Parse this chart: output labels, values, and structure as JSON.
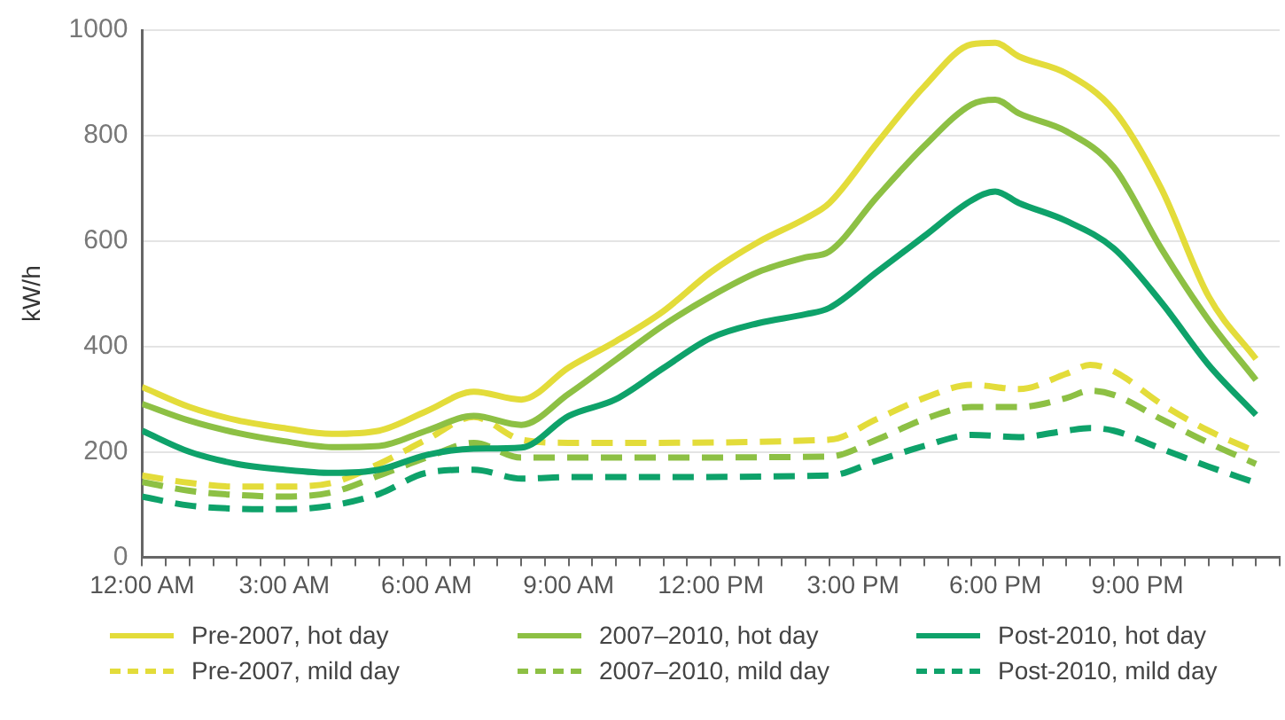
{
  "chart_data": {
    "type": "line",
    "ylabel": "kW/h",
    "xlim": [
      0,
      24
    ],
    "ylim": [
      0,
      1000
    ],
    "yticks": [
      0,
      200,
      400,
      600,
      800,
      1000
    ],
    "xticks": [
      {
        "value": 0,
        "label": "12:00 AM"
      },
      {
        "value": 0.5,
        "label": null
      },
      {
        "value": 1,
        "label": null
      },
      {
        "value": 1.5,
        "label": null
      },
      {
        "value": 2,
        "label": null
      },
      {
        "value": 2.5,
        "label": null
      },
      {
        "value": 3,
        "label": "3:00 AM"
      },
      {
        "value": 3.5,
        "label": null
      },
      {
        "value": 4,
        "label": null
      },
      {
        "value": 4.5,
        "label": null
      },
      {
        "value": 5,
        "label": null
      },
      {
        "value": 5.5,
        "label": null
      },
      {
        "value": 6,
        "label": "6:00 AM"
      },
      {
        "value": 6.5,
        "label": null
      },
      {
        "value": 7,
        "label": null
      },
      {
        "value": 7.5,
        "label": null
      },
      {
        "value": 8,
        "label": null
      },
      {
        "value": 8.5,
        "label": null
      },
      {
        "value": 9,
        "label": "9:00 AM"
      },
      {
        "value": 9.5,
        "label": null
      },
      {
        "value": 10,
        "label": null
      },
      {
        "value": 10.5,
        "label": null
      },
      {
        "value": 11,
        "label": null
      },
      {
        "value": 11.5,
        "label": null
      },
      {
        "value": 12,
        "label": "12:00 PM"
      },
      {
        "value": 12.5,
        "label": null
      },
      {
        "value": 13,
        "label": null
      },
      {
        "value": 13.5,
        "label": null
      },
      {
        "value": 14,
        "label": null
      },
      {
        "value": 14.5,
        "label": null
      },
      {
        "value": 15,
        "label": "3:00 PM"
      },
      {
        "value": 15.5,
        "label": null
      },
      {
        "value": 16,
        "label": null
      },
      {
        "value": 16.5,
        "label": null
      },
      {
        "value": 17,
        "label": null
      },
      {
        "value": 17.5,
        "label": null
      },
      {
        "value": 18,
        "label": "6:00 PM"
      },
      {
        "value": 18.5,
        "label": null
      },
      {
        "value": 19,
        "label": null
      },
      {
        "value": 19.5,
        "label": null
      },
      {
        "value": 20,
        "label": null
      },
      {
        "value": 20.5,
        "label": null
      },
      {
        "value": 21,
        "label": "9:00 PM"
      },
      {
        "value": 21.5,
        "label": null
      },
      {
        "value": 22,
        "label": null
      },
      {
        "value": 22.5,
        "label": null
      },
      {
        "value": 23,
        "label": null
      },
      {
        "value": 23.5,
        "label": null
      },
      {
        "value": 24,
        "label": null
      }
    ],
    "grid": "y",
    "legend": "bottom",
    "marker": "none",
    "series": [
      {
        "name": "Pre-2007, hot day",
        "color": "#e3dc3a",
        "line_style": "solid",
        "x": [
          0,
          1,
          2,
          3,
          4,
          5,
          6,
          7,
          8,
          9,
          10,
          11,
          12,
          13,
          14,
          14.5,
          15.5,
          16.5,
          17.5,
          18,
          18.5,
          19.5,
          20.5,
          21.5,
          22.5,
          23.5
        ],
        "values": [
          323,
          285,
          260,
          245,
          234,
          240,
          277,
          314,
          299,
          360,
          410,
          467,
          541,
          598,
          643,
          672,
          785,
          893,
          973,
          976,
          950,
          918,
          848,
          700,
          495,
          376
        ]
      },
      {
        "name": "2007–2010, hot day",
        "color": "#8dc044",
        "line_style": "solid",
        "x": [
          0,
          1,
          2,
          3,
          4,
          5,
          6,
          7,
          8,
          9,
          10,
          11,
          12,
          13,
          14,
          14.5,
          15.5,
          16.5,
          17.5,
          18,
          18.5,
          19.5,
          20.5,
          21.5,
          22.5,
          23.5
        ],
        "values": [
          291,
          259,
          236,
          220,
          209,
          211,
          240,
          268,
          251,
          310,
          375,
          440,
          495,
          541,
          569,
          580,
          683,
          780,
          859,
          868,
          842,
          808,
          740,
          586,
          450,
          336
        ]
      },
      {
        "name": "Post-2010, hot day",
        "color": "#0ea26a",
        "line_style": "solid",
        "x": [
          0,
          1,
          2,
          3,
          4,
          5,
          6,
          7,
          8,
          9,
          10,
          11,
          12,
          13,
          14,
          14.5,
          15.5,
          16.5,
          17.5,
          18,
          18.5,
          19.5,
          20.5,
          21.5,
          22.5,
          23.5
        ],
        "values": [
          240,
          200,
          177,
          166,
          160,
          166,
          194,
          206,
          208,
          268,
          300,
          359,
          416,
          444,
          461,
          473,
          541,
          609,
          677,
          694,
          672,
          638,
          586,
          484,
          365,
          270
        ]
      },
      {
        "name": "Pre-2007, mild day",
        "color": "#e3dc3a",
        "line_style": "dashed",
        "x": [
          0,
          1,
          2,
          3,
          4,
          5,
          6,
          7,
          8,
          9,
          10,
          14.5,
          15.5,
          16.5,
          17.5,
          18.5,
          19.5,
          20,
          20.5,
          21.5,
          22.5,
          23.5
        ],
        "values": [
          155,
          141,
          134,
          134,
          141,
          177,
          223,
          266,
          223,
          217,
          217,
          223,
          262,
          302,
          327,
          319,
          348,
          365,
          353,
          291,
          240,
          200
        ]
      },
      {
        "name": "2007–2010, mild day",
        "color": "#8dc044",
        "line_style": "dashed",
        "x": [
          0,
          1,
          2,
          3,
          4,
          5,
          6,
          7,
          8,
          9,
          10,
          14.5,
          15.5,
          16.5,
          17.5,
          18.5,
          19.5,
          20,
          20.5,
          21.5,
          22.5,
          23.5
        ],
        "values": [
          143,
          126,
          118,
          115,
          123,
          155,
          189,
          217,
          189,
          189,
          189,
          191,
          223,
          262,
          285,
          285,
          302,
          316,
          308,
          262,
          217,
          177
        ]
      },
      {
        "name": "Post-2010, mild day",
        "color": "#0ea26a",
        "line_style": "dashed",
        "x": [
          0,
          1,
          2,
          3,
          4,
          5,
          6,
          7,
          8,
          9,
          10,
          14.5,
          15.5,
          16.5,
          17.5,
          18.5,
          19.5,
          20,
          20.5,
          21.5,
          22.5,
          23.5
        ],
        "values": [
          115,
          98,
          92,
          91,
          98,
          120,
          160,
          166,
          149,
          152,
          152,
          155,
          183,
          211,
          232,
          228,
          240,
          245,
          240,
          206,
          172,
          141
        ]
      }
    ]
  }
}
